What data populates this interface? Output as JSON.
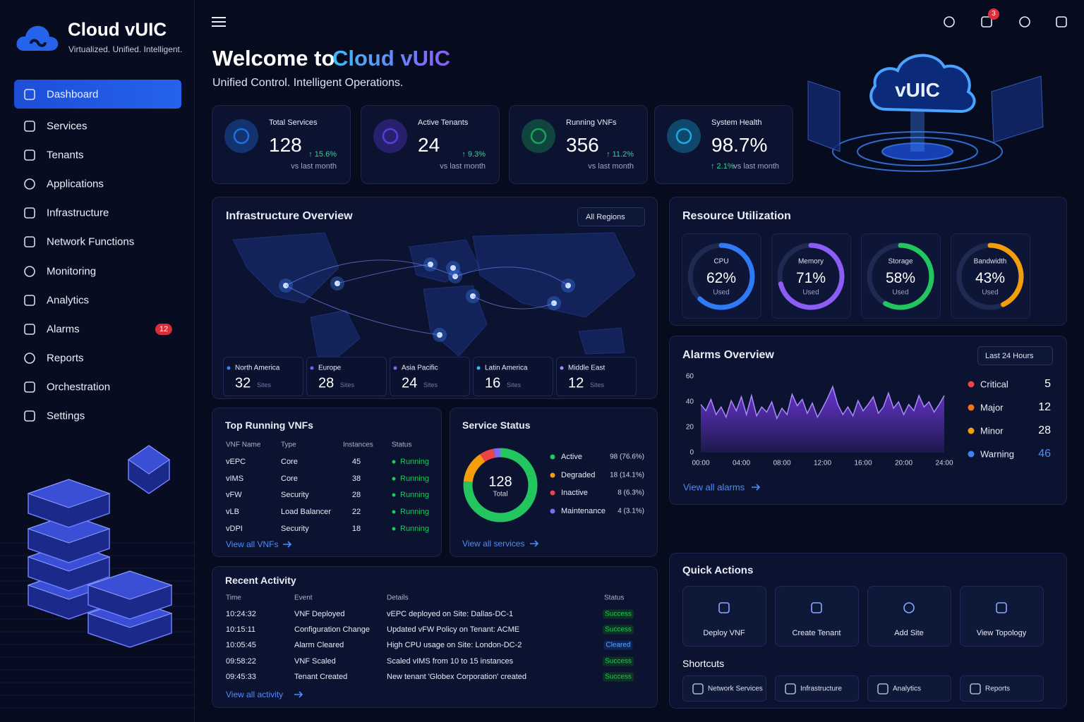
{
  "sidebar": {
    "brand": "Cloud vUIC",
    "tagline": "Virtualized. Unified. Intelligent.",
    "nav": [
      {
        "label": "Dashboard"
      },
      {
        "label": "Services"
      },
      {
        "label": "Tenants"
      },
      {
        "label": "Applications"
      },
      {
        "label": "Infrastructure"
      },
      {
        "label": "Network Functions"
      },
      {
        "label": "Monitoring"
      },
      {
        "label": "Analytics"
      },
      {
        "label": "Alarms",
        "badge": "12"
      },
      {
        "label": "Reports"
      },
      {
        "label": "Orchestration"
      },
      {
        "label": "Settings"
      }
    ]
  },
  "header": {
    "notifications": "3",
    "title_prefix": "Welcome to",
    "title_brand": "Cloud vUIC",
    "subtitle": "Unified Control. Intelligent Operations.",
    "hero": "vUIC"
  },
  "stats": [
    {
      "label": "Total Services",
      "value": "128",
      "delta": "↑ 15.6%",
      "note": "vs last month",
      "color": "#1f6fe0"
    },
    {
      "label": "Active Tenants",
      "value": "24",
      "delta": "↑ 9.3%",
      "note": "vs last month",
      "color": "#5b3be0"
    },
    {
      "label": "Running VNFs",
      "value": "356",
      "delta": "↑ 11.2%",
      "note": "vs last month",
      "color": "#17a35a"
    },
    {
      "label": "System Health",
      "value": "98.7%",
      "delta": "↑ 2.1%",
      "note": "vs last month",
      "color": "#1aa8e0"
    }
  ],
  "infrastructure": {
    "title": "Infrastructure Overview",
    "filter": "All Regions",
    "regions": [
      {
        "name": "North America",
        "sites": "32",
        "unit": "Sites"
      },
      {
        "name": "Europe",
        "sites": "28",
        "unit": "Sites"
      },
      {
        "name": "Asia Pacific",
        "sites": "24",
        "unit": "Sites"
      },
      {
        "name": "Latin America",
        "sites": "16",
        "unit": "Sites"
      },
      {
        "name": "Middle East",
        "sites": "12",
        "unit": "Sites"
      }
    ]
  },
  "resources": {
    "title": "Resource Utilization",
    "items": [
      {
        "name": "CPU",
        "value": 62,
        "value_label": "62%",
        "note": "Used",
        "color": "#2f7bf5"
      },
      {
        "name": "Memory",
        "value": 71,
        "value_label": "71%",
        "note": "Used",
        "color": "#8b5cf6"
      },
      {
        "name": "Storage",
        "value": 58,
        "value_label": "58%",
        "note": "Used",
        "color": "#22c55e"
      },
      {
        "name": "Bandwidth",
        "value": 43,
        "value_label": "43%",
        "note": "Used",
        "color": "#f59e0b"
      }
    ]
  },
  "alarms": {
    "title": "Alarms Overview",
    "filter": "Last 24 Hours",
    "link": "View all alarms",
    "chart": {
      "type": "area",
      "color": "#7c3aed",
      "x": [
        0,
        0.5,
        1,
        1.5,
        2,
        2.5,
        3,
        3.5,
        4,
        4.5,
        5,
        5.5,
        6,
        6.5,
        7,
        7.5,
        8,
        8.5,
        9,
        9.5,
        10,
        10.5,
        11,
        11.5,
        12,
        12.5,
        13,
        13.5,
        14,
        14.5,
        15,
        15.5,
        16,
        16.5,
        17,
        17.5,
        18,
        18.5,
        19,
        19.5,
        20,
        20.5,
        21,
        21.5,
        22,
        22.5,
        23,
        23.5,
        24
      ],
      "values": [
        38,
        33,
        42,
        30,
        36,
        28,
        41,
        33,
        44,
        30,
        45,
        29,
        36,
        32,
        40,
        27,
        35,
        30,
        46,
        37,
        42,
        31,
        39,
        28,
        35,
        43,
        52,
        38,
        30,
        36,
        29,
        41,
        33,
        38,
        44,
        31,
        36,
        47,
        35,
        40,
        30,
        38,
        33,
        45,
        36,
        40,
        32,
        38,
        45
      ],
      "xlim": [
        0,
        24
      ],
      "xticks": [
        {
          "value": 0,
          "label": "00:00"
        },
        {
          "value": 4,
          "label": "04:00"
        },
        {
          "value": 8,
          "label": "08:00"
        },
        {
          "value": 12,
          "label": "12:00"
        },
        {
          "value": 16,
          "label": "16:00"
        },
        {
          "value": 20,
          "label": "20:00"
        },
        {
          "value": 24,
          "label": "24:00"
        }
      ],
      "ylim": [
        0,
        60
      ],
      "yticks": [
        0,
        20,
        40,
        60
      ]
    },
    "levels": [
      {
        "name": "Critical",
        "count": 5,
        "color": "#ef4444"
      },
      {
        "name": "Major",
        "count": 12,
        "color": "#f97316"
      },
      {
        "name": "Minor",
        "count": 28,
        "color": "#f59e0b"
      },
      {
        "name": "Warning",
        "count": 46,
        "color": "#3b82f6"
      }
    ]
  },
  "vnfs": {
    "title": "Top Running VNFs",
    "columns": [
      "VNF Name",
      "Type",
      "Instances",
      "Status"
    ],
    "rows": [
      [
        "vEPC",
        "Core",
        45,
        "Running"
      ],
      [
        "vIMS",
        "Core",
        38,
        "Running"
      ],
      [
        "vFW",
        "Security",
        28,
        "Running"
      ],
      [
        "vLB",
        "Load Balancer",
        22,
        "Running"
      ],
      [
        "vDPI",
        "Security",
        18,
        "Running"
      ]
    ],
    "link": "View all VNFs"
  },
  "service_status": {
    "title": "Service Status",
    "total": 128,
    "total_label": "Total",
    "items": [
      {
        "name": "Active",
        "count": 98,
        "label": "98 (76.6%)",
        "color": "#22c55e"
      },
      {
        "name": "Degraded",
        "count": 18,
        "label": "18 (14.1%)",
        "color": "#f59e0b"
      },
      {
        "name": "Inactive",
        "count": 8,
        "label": "8 (6.3%)",
        "color": "#ef4444"
      },
      {
        "name": "Maintenance",
        "count": 4,
        "label": "4 (3.1%)",
        "color": "#7c6cf0"
      }
    ],
    "link": "View all services"
  },
  "activity": {
    "title": "Recent Activity",
    "columns": [
      "Time",
      "Event",
      "Details",
      "Status"
    ],
    "rows": [
      [
        "10:24:32",
        "VNF Deployed",
        "vEPC deployed on Site: Dallas-DC-1",
        "Success"
      ],
      [
        "10:15:11",
        "Configuration Change",
        "Updated vFW Policy on Tenant: ACME",
        "Success"
      ],
      [
        "10:05:45",
        "Alarm Cleared",
        "High CPU usage on Site: London-DC-2",
        "Cleared"
      ],
      [
        "09:58:22",
        "VNF Scaled",
        "Scaled vIMS from 10 to 15 instances",
        "Success"
      ],
      [
        "09:45:33",
        "Tenant Created",
        "New tenant 'Globex Corporation' created",
        "Success"
      ]
    ],
    "link": "View all activity"
  },
  "quick_actions": {
    "title": "Quick Actions",
    "actions": [
      "Deploy VNF",
      "Create Tenant",
      "Add Site",
      "View Topology"
    ],
    "shortcuts_title": "Shortcuts",
    "shortcuts": [
      "Network Services",
      "Infrastructure",
      "Analytics",
      "Reports"
    ]
  }
}
